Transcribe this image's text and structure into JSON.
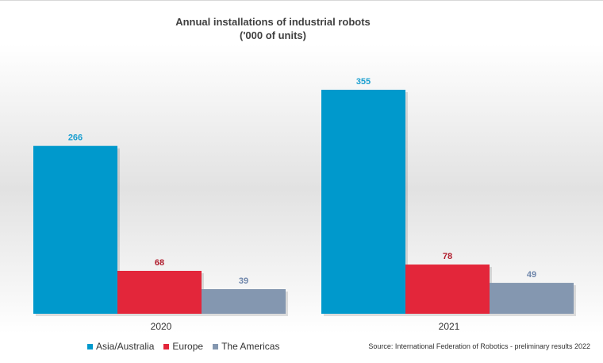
{
  "chart_data": {
    "type": "bar",
    "title": "Annual installations of industrial robots",
    "subtitle": "('000 of units)",
    "categories": [
      "2020",
      "2021"
    ],
    "series": [
      {
        "name": "Asia/Australia",
        "values": [
          266,
          355
        ],
        "color": "#0099CC",
        "label_color": "#1a9fd0"
      },
      {
        "name": "Europe",
        "values": [
          68,
          78
        ],
        "color": "#E3263A",
        "label_color": "#b01c2c"
      },
      {
        "name": "The Americas",
        "values": [
          39,
          49
        ],
        "color": "#8497B0",
        "label_color": "#6f86ab"
      }
    ],
    "ylim": [
      0,
      380
    ],
    "grid": false,
    "legend_position": "bottom-left",
    "source": "Source: International Federation of Robotics - preliminary results 2022"
  }
}
